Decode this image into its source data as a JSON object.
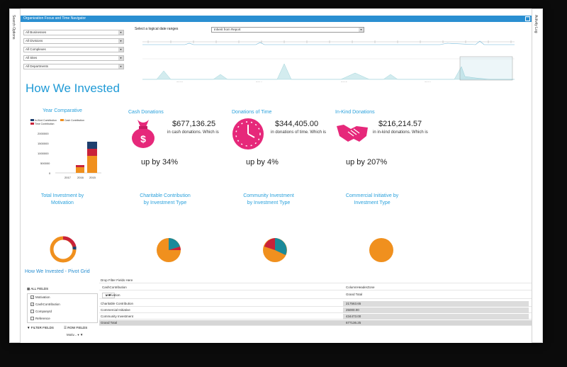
{
  "side_tabs": {
    "left": "Search Options",
    "right": "Activity Log"
  },
  "filter": {
    "header": "Organization Focus and Time Navigator",
    "collapse_glyph": "^",
    "dropdowns": [
      "All Businesses",
      "All Divisions",
      "All Complexes",
      "All Sites",
      "All Departments"
    ],
    "date_label": "Select a logical date ranges",
    "date_select": "Inherit from Report",
    "timeline_years": [
      "2013",
      "2014",
      "2015",
      "2016"
    ]
  },
  "page_title": "How We Invested",
  "year_comparative": {
    "title": "Year Comparative",
    "legend": [
      "In-Kind Contribution",
      "Cash Contribution",
      "Time Contribution"
    ],
    "yticks": [
      "2000000",
      "1500000",
      "1000000",
      "500000",
      "0"
    ],
    "categories": [
      "2017",
      "2016",
      "2015"
    ]
  },
  "cash": {
    "title": "Cash Donations",
    "amount": "$677,136.25",
    "desc": "in cash donations. Which is",
    "change": "up by 34%"
  },
  "time": {
    "title": "Donations of Time",
    "amount": "$344,405.00",
    "desc": "in donations of time. Which is",
    "change": "up by 4%"
  },
  "inkind": {
    "title": "In-Kind Donations",
    "amount": "$216,214.57",
    "desc": "in in-kind donations. Which is",
    "change": "up by 207%"
  },
  "chart_titles": {
    "motivation": [
      "Total Investment by",
      "Motivation"
    ],
    "charitable": [
      "Charitable Contribution",
      "by Investment Type"
    ],
    "community": [
      "Community Investment",
      "by Investment Type"
    ],
    "commercial": [
      "Commercial Initiative by",
      "Investment Type"
    ]
  },
  "pivot": {
    "title": "How We Invested - Pivot Grid",
    "all_fields": "ALL FIELDS",
    "fields": [
      {
        "label": "Motivation",
        "checked": true
      },
      {
        "label": "CashContribution",
        "checked": true
      },
      {
        "label": "CompanyId",
        "checked": false
      },
      {
        "label": "Reference",
        "checked": false
      }
    ],
    "filter_fields": "FILTER FIELDS",
    "row_fields": "ROW FIELDS",
    "row_field_value": "Motiv...",
    "drop_filter": "Drop Filter Fields Here",
    "data_field": "CashContribution",
    "column_header": "ColumnHeaderZone",
    "row_header": "Motivation",
    "grand_total_header": "Grand Total",
    "rows": [
      {
        "label": "Charitable Contribution",
        "value": "217563.65"
      },
      {
        "label": "Commercial Initiative",
        "value": "25000.00"
      },
      {
        "label": "Community Investment",
        "value": "434473.00"
      },
      {
        "label": "Grand Total",
        "value": "677136.25"
      }
    ]
  },
  "colors": {
    "accent": "#2a8fd1",
    "title": "#1f9ad6",
    "magenta": "#e6287a",
    "orange": "#f0901e",
    "teal": "#1a8a9a",
    "crimson": "#c9223a",
    "navy": "#1e3f6e"
  }
}
